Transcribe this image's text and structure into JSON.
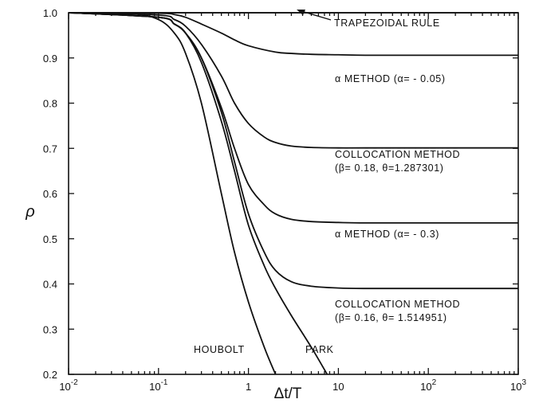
{
  "chart_data": {
    "type": "line",
    "xlabel": "Δt/T",
    "ylabel": "ρ",
    "xscale": "log",
    "xlim": [
      0.01,
      1000
    ],
    "ylim": [
      0.2,
      1.0
    ],
    "grid": false,
    "x_ticks": [
      0.01,
      0.1,
      1,
      10,
      100,
      1000
    ],
    "x_tick_labels": [
      {
        "base": "10",
        "exp": "-2"
      },
      {
        "base": "10",
        "exp": "-1"
      },
      {
        "base": "1",
        "exp": ""
      },
      {
        "base": "10",
        "exp": ""
      },
      {
        "base": "10",
        "exp": "2"
      },
      {
        "base": "10",
        "exp": "3"
      }
    ],
    "y_ticks": [
      0.2,
      0.3,
      0.4,
      0.5,
      0.6,
      0.7,
      0.8,
      0.9,
      1.0
    ],
    "y_tick_labels": [
      "0.2",
      "0.3",
      "0.4",
      "0.5",
      "0.6",
      "0.7",
      "0.8",
      "0.9",
      "1.0"
    ],
    "series": [
      {
        "key": "trapezoidal",
        "x": [
          0.01,
          1000
        ],
        "y": [
          1.0,
          1.0
        ]
      },
      {
        "key": "alpha_005",
        "x": [
          0.01,
          0.1,
          0.15,
          0.2,
          0.3,
          0.5,
          0.7,
          1,
          2,
          3,
          5,
          10,
          20,
          50,
          100,
          1000
        ],
        "y": [
          1.0,
          0.999,
          0.996,
          0.99,
          0.975,
          0.955,
          0.94,
          0.927,
          0.913,
          0.91,
          0.908,
          0.907,
          0.906,
          0.906,
          0.906,
          0.906
        ]
      },
      {
        "key": "collocation_018",
        "x": [
          0.01,
          0.1,
          0.15,
          0.2,
          0.3,
          0.5,
          0.7,
          1,
          1.5,
          2,
          3,
          5,
          10,
          20,
          100,
          1000
        ],
        "y": [
          1.0,
          0.995,
          0.985,
          0.97,
          0.93,
          0.86,
          0.8,
          0.755,
          0.725,
          0.713,
          0.705,
          0.702,
          0.701,
          0.701,
          0.701,
          0.701
        ]
      },
      {
        "key": "alpha_03",
        "x": [
          0.01,
          0.1,
          0.15,
          0.2,
          0.3,
          0.5,
          0.7,
          1,
          1.5,
          2,
          3,
          5,
          10,
          20,
          100,
          1000
        ],
        "y": [
          1.0,
          0.99,
          0.975,
          0.955,
          0.9,
          0.79,
          0.7,
          0.62,
          0.575,
          0.555,
          0.543,
          0.538,
          0.536,
          0.535,
          0.535,
          0.535
        ]
      },
      {
        "key": "collocation_016",
        "x": [
          0.01,
          0.1,
          0.15,
          0.2,
          0.3,
          0.5,
          0.7,
          1,
          1.5,
          2,
          3,
          5,
          10,
          20,
          100,
          1000
        ],
        "y": [
          1.0,
          0.99,
          0.975,
          0.955,
          0.9,
          0.78,
          0.67,
          0.555,
          0.47,
          0.43,
          0.405,
          0.395,
          0.391,
          0.39,
          0.39,
          0.39
        ]
      },
      {
        "key": "park",
        "x": [
          0.01,
          0.1,
          0.15,
          0.2,
          0.3,
          0.5,
          0.7,
          1,
          1.5,
          2,
          3,
          5,
          7.5
        ],
        "y": [
          1.0,
          0.99,
          0.975,
          0.955,
          0.89,
          0.76,
          0.65,
          0.53,
          0.44,
          0.39,
          0.33,
          0.26,
          0.2
        ]
      },
      {
        "key": "houbolt",
        "x": [
          0.01,
          0.05,
          0.1,
          0.15,
          0.2,
          0.3,
          0.5,
          0.7,
          1,
          1.5,
          2.0
        ],
        "y": [
          1.0,
          0.998,
          0.985,
          0.955,
          0.91,
          0.8,
          0.6,
          0.47,
          0.36,
          0.26,
          0.2
        ]
      }
    ],
    "annotations": {
      "trapezoidal": "TRAPEZOIDAL RULE",
      "alpha_005": "α METHOD (α= - 0.05)",
      "collocation_018_line1": "COLLOCATION METHOD",
      "collocation_018_line2": "(β= 0.18, θ=1.287301)",
      "alpha_03": "α METHOD (α= - 0.3)",
      "collocation_016_line1": "COLLOCATION METHOD",
      "collocation_016_line2": "(β= 0.16, θ= 1.514951)",
      "houbolt": "HOUBOLT",
      "park": "PARK"
    }
  }
}
